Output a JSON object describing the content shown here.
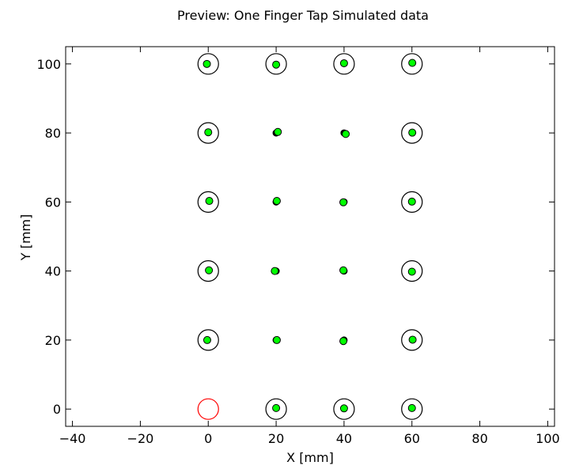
{
  "chart_data": {
    "type": "scatter",
    "title": "Preview: One Finger Tap Simulated data",
    "xlabel": "X [mm]",
    "ylabel": "Y [mm]",
    "xlim": [
      -42,
      102
    ],
    "ylim": [
      105,
      -5
    ],
    "y_inverted": true,
    "grid": false,
    "xticks": [
      -40,
      -20,
      0,
      20,
      40,
      60,
      80,
      100
    ],
    "yticks": [
      0,
      20,
      40,
      60,
      80,
      100
    ],
    "xtick_labels": [
      "−40",
      "−20",
      "0",
      "20",
      "40",
      "60",
      "80",
      "100"
    ],
    "ytick_labels": [
      "0",
      "20",
      "40",
      "60",
      "80",
      "100"
    ],
    "boundary_rectangle": {
      "x": [
        0,
        60
      ],
      "y": [
        0,
        100
      ],
      "color": "#000000"
    },
    "series": [
      {
        "marker": "large-open-circle",
        "color": "#000000",
        "points": [
          [
            0,
            0
          ],
          [
            20,
            0
          ],
          [
            40,
            0
          ],
          [
            60,
            0
          ],
          [
            0,
            20
          ],
          [
            60,
            20
          ],
          [
            0,
            40
          ],
          [
            60,
            40
          ],
          [
            0,
            60
          ],
          [
            60,
            60
          ],
          [
            0,
            80
          ],
          [
            60,
            80
          ],
          [
            0,
            100
          ],
          [
            20,
            100
          ],
          [
            40,
            100
          ],
          [
            60,
            100
          ]
        ],
        "highlight": {
          "point_index": 0,
          "color": "#ff0000"
        }
      },
      {
        "marker": "small-black-dot",
        "color": "#000000",
        "points": [
          [
            20,
            20
          ],
          [
            40,
            20
          ],
          [
            20,
            40
          ],
          [
            40,
            40
          ],
          [
            20,
            60
          ],
          [
            40,
            60
          ],
          [
            20,
            80
          ],
          [
            40,
            80
          ]
        ]
      },
      {
        "marker": "green-dot",
        "color": "#00ff00",
        "points": [
          [
            20,
            0.3
          ],
          [
            40,
            0.2
          ],
          [
            60,
            0.3
          ],
          [
            -0.3,
            20
          ],
          [
            20.2,
            20
          ],
          [
            39.8,
            19.7
          ],
          [
            60.2,
            20.1
          ],
          [
            0.2,
            40.2
          ],
          [
            19.6,
            40
          ],
          [
            39.8,
            40.2
          ],
          [
            60,
            39.8
          ],
          [
            0.3,
            60.3
          ],
          [
            20.2,
            60.3
          ],
          [
            39.8,
            59.9
          ],
          [
            60,
            60.1
          ],
          [
            0,
            80.2
          ],
          [
            20.5,
            80.3
          ],
          [
            40.5,
            79.7
          ],
          [
            60.1,
            80.1
          ],
          [
            -0.4,
            100
          ],
          [
            20,
            99.8
          ],
          [
            40,
            100.2
          ],
          [
            60.1,
            100.3
          ]
        ]
      }
    ]
  }
}
